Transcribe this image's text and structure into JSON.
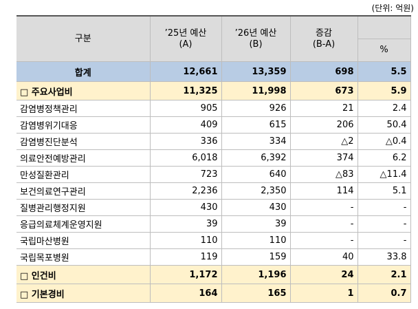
{
  "unit": "(단위: 억원)",
  "header": {
    "category": "구분",
    "a": [
      "’25년 예산",
      "(A)"
    ],
    "b": [
      "’26년 예산",
      "(B)"
    ],
    "diff": [
      "증감",
      "(B-A)"
    ],
    "pct": "%"
  },
  "rows": [
    [
      "합계",
      "12,661",
      "13,359",
      "698",
      "5.5"
    ],
    [
      "□ 주요사업비",
      "11,325",
      "11,998",
      "673",
      "5.9"
    ],
    [
      "감염병정책관리",
      "905",
      "926",
      "21",
      "2.4"
    ],
    [
      "감염병위기대응",
      "409",
      "615",
      "206",
      "50.4"
    ],
    [
      "감염병진단분석",
      "336",
      "334",
      "△2",
      "△0.4"
    ],
    [
      "의료안전예방관리",
      "6,018",
      "6,392",
      "374",
      "6.2"
    ],
    [
      "만성질환관리",
      "723",
      "640",
      "△83",
      "△11.4"
    ],
    [
      "보건의료연구관리",
      "2,236",
      "2,350",
      "114",
      "5.1"
    ],
    [
      "질병관리행정지원",
      "430",
      "430",
      "-",
      "-"
    ],
    [
      "응급의료체계운영지원",
      "39",
      "39",
      "-",
      "-"
    ],
    [
      "국립마산병원",
      "110",
      "110",
      "-",
      "-"
    ],
    [
      "국립목포병원",
      "119",
      "159",
      "40",
      "33.8"
    ],
    [
      "□ 인건비",
      "1,172",
      "1,196",
      "24",
      "2.1"
    ],
    [
      "□ 기본경비",
      "164",
      "165",
      "1",
      "0.7"
    ]
  ]
}
